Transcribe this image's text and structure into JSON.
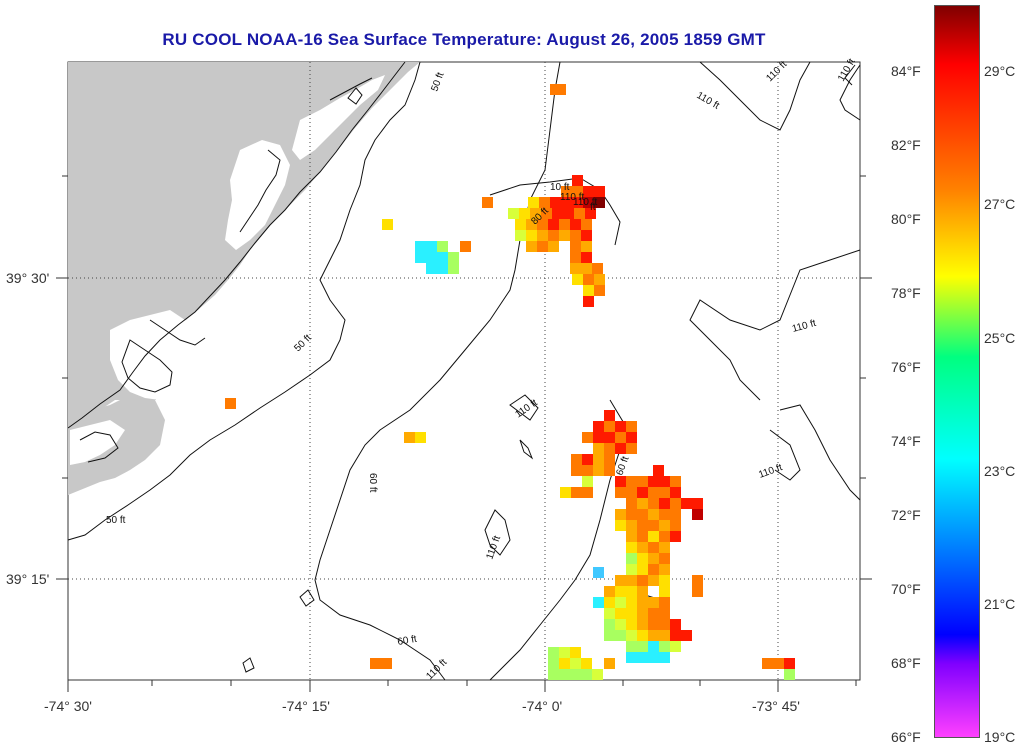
{
  "title": "RU COOL  NOAA-16  Sea Surface Temperature:  August 26, 2005 1859 GMT",
  "colors": {
    "land": "#c8c8c8",
    "ocean": "#ffffff",
    "title": "#1a1aa8"
  },
  "axes": {
    "x_ticks": [
      "-74° 30'",
      "-74° 15'",
      "-74° 0'",
      "-73° 45'"
    ],
    "y_ticks": [
      "39° 30'",
      "39° 15'"
    ],
    "grid": "dotted"
  },
  "colorbar": {
    "fahrenheit": [
      "84°F",
      "82°F",
      "80°F",
      "78°F",
      "76°F",
      "74°F",
      "72°F",
      "70°F",
      "68°F",
      "66°F"
    ],
    "celsius": [
      "29°C",
      "27°C",
      "25°C",
      "23°C",
      "21°C",
      "19°C"
    ],
    "stops": [
      "#800000",
      "#ff0000",
      "#ff8000",
      "#ffff00",
      "#00ff80",
      "#00ffff",
      "#0080ff",
      "#0000ff",
      "#8000ff",
      "#ff40ff"
    ]
  },
  "contour_labels": [
    "50 ft",
    "50 ft",
    "50 ft",
    "60 ft",
    "60 ft",
    "80 ft",
    "110 ft",
    "110 ft",
    "110 ft",
    "110 ft",
    "110 ft",
    "110 ft",
    "110 ft",
    "110 ft",
    "60 ft",
    "110 ft",
    "10 ft",
    "110 ft",
    "ft"
  ]
}
